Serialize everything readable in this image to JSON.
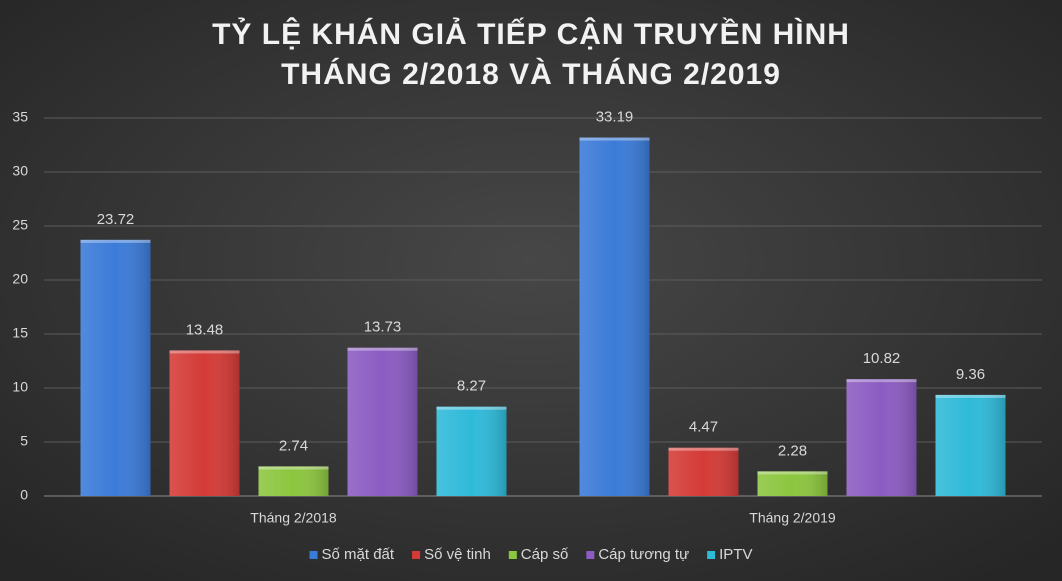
{
  "chart_data": {
    "type": "bar",
    "title": [
      "TỶ LỆ KHÁN GIẢ TIẾP CẬN TRUYỀN HÌNH",
      "THÁNG 2/2018 VÀ THÁNG 2/2019"
    ],
    "categories": [
      "Tháng 2/2018",
      "Tháng 2/2019"
    ],
    "series": [
      {
        "name": "Số mặt đất",
        "color": "#3b7bd8",
        "values": [
          23.72,
          33.19
        ]
      },
      {
        "name": "Số vệ tinh",
        "color": "#d43b37",
        "values": [
          13.48,
          4.47
        ]
      },
      {
        "name": "Cáp số",
        "color": "#8cc63f",
        "values": [
          2.74,
          2.28
        ]
      },
      {
        "name": "Cáp tương tự",
        "color": "#8b5cc2",
        "values": [
          13.73,
          10.82
        ]
      },
      {
        "name": "IPTV",
        "color": "#2fbad9",
        "values": [
          8.27,
          9.36
        ]
      }
    ],
    "ylim": [
      0,
      35
    ],
    "yticks": [
      0,
      5,
      10,
      15,
      20,
      25,
      30,
      35
    ],
    "grid": true,
    "legend": "bottom"
  }
}
